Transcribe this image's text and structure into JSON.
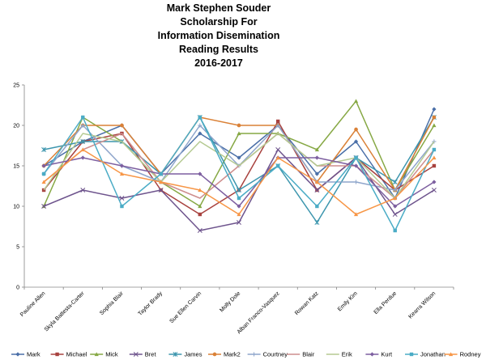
{
  "chart_data": {
    "type": "line",
    "title_lines": [
      "Mark Stephen Souder",
      "Scholarship For",
      "Information Disemination",
      "Reading Results",
      "2016-2017"
    ],
    "xlabel": "",
    "ylabel": "",
    "ylim": [
      0,
      25
    ],
    "y_ticks": [
      0,
      5,
      10,
      15,
      20,
      25
    ],
    "grid": false,
    "legend_position": "bottom",
    "categories": [
      "Pauline Allen",
      "Skyla Battesta-Carter",
      "Sophia Blair",
      "Taylor Brady",
      "Sue Ellen Carvin",
      "Molly Dole",
      "Alban Franco-Vasquez",
      "Rowan Katz",
      "Emily Kim",
      "Ella Perdue",
      "Kearra Wilson"
    ],
    "series": [
      {
        "name": "Mark",
        "color": "#4a6fa8",
        "marker": "diamond",
        "values": [
          15,
          18,
          20,
          14,
          19,
          16,
          20,
          14,
          18,
          11,
          22
        ]
      },
      {
        "name": "Michael",
        "color": "#a8423f",
        "marker": "square",
        "values": [
          12,
          18,
          19,
          12,
          9,
          12,
          20.5,
          12,
          16,
          12,
          15
        ]
      },
      {
        "name": "Mick",
        "color": "#86a844",
        "marker": "triangle",
        "values": [
          10,
          21,
          18,
          13,
          10,
          19,
          19,
          17,
          23,
          12,
          20
        ]
      },
      {
        "name": "Bret",
        "color": "#6e548d",
        "marker": "x",
        "values": [
          10,
          12,
          11,
          12,
          7,
          8,
          17,
          12,
          16,
          9,
          12
        ]
      },
      {
        "name": "James",
        "color": "#3d96ae",
        "marker": "star",
        "values": [
          17,
          18,
          18,
          14,
          21,
          12,
          15,
          8,
          16,
          13,
          21
        ]
      },
      {
        "name": "Mark2",
        "color": "#da8137",
        "marker": "circle",
        "values": [
          15,
          20,
          20,
          14,
          21,
          20,
          20,
          13,
          19.5,
          12,
          21
        ]
      },
      {
        "name": "Courtney",
        "color": "#8ea5cb",
        "marker": "plus",
        "values": [
          14,
          20,
          15,
          13,
          20,
          15,
          20,
          13,
          13,
          12,
          18
        ]
      },
      {
        "name": "Blair",
        "color": "#ce8e8d",
        "marker": "none",
        "values": [
          13,
          17,
          19,
          13,
          11,
          15,
          19,
          15,
          15,
          11,
          17
        ]
      },
      {
        "name": "Erik",
        "color": "#b5ca92",
        "marker": "none",
        "values": [
          12,
          19,
          18,
          13,
          18,
          15,
          19,
          15,
          16,
          11,
          18
        ]
      },
      {
        "name": "Kurt",
        "color": "#7d5fa0",
        "marker": "diamond",
        "values": [
          15,
          16,
          15,
          14,
          14,
          10,
          16,
          16,
          15,
          10,
          13
        ]
      },
      {
        "name": "Jonathan",
        "color": "#4bacc6",
        "marker": "square",
        "values": [
          14,
          21,
          10,
          14,
          21,
          11,
          15,
          10,
          16,
          7,
          17
        ]
      },
      {
        "name": "Rodney",
        "color": "#f79646",
        "marker": "triangle",
        "values": [
          13,
          17,
          14,
          13,
          12,
          9,
          16,
          13,
          9,
          11,
          16
        ]
      }
    ]
  }
}
